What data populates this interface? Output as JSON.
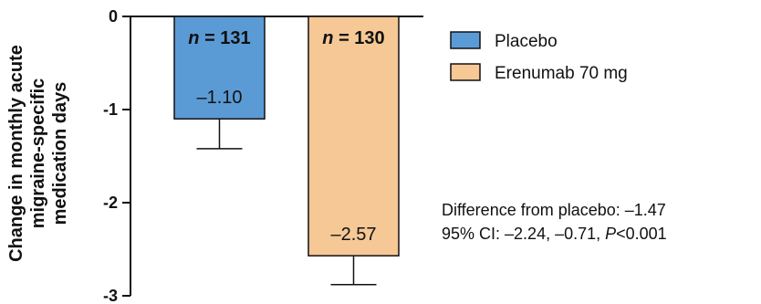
{
  "colors": {
    "placebo_fill": "#5b9bd5",
    "erenumab_fill": "#f5c896",
    "bar_stroke": "#111111",
    "axis": "#111111"
  },
  "chart_data": {
    "type": "bar",
    "categories": [
      "Placebo",
      "Erenumab 70 mg"
    ],
    "values": [
      -1.1,
      -2.57
    ],
    "error_lower": [
      -1.42,
      -2.88
    ],
    "n_prefix": "n",
    "n_values": [
      "131",
      "130"
    ],
    "n_labels": [
      " = 131",
      " = 130"
    ],
    "value_labels": [
      "–1.10",
      "–2.57"
    ],
    "ylabel_lines": [
      "Change in monthly acute",
      "migraine-specific",
      "medication days"
    ],
    "ylim": [
      -3,
      0
    ],
    "yticks": [
      0,
      -1,
      -2,
      -3
    ],
    "ytick_labels": [
      "0",
      "-1",
      "-2",
      "-3"
    ],
    "legend": {
      "placement": "top-right",
      "entries": [
        "Placebo",
        "Erenumab 70 mg"
      ]
    },
    "annotation": {
      "line1": "Difference from placebo: –1.47",
      "line2_prefix": "95% CI: –2.24, –0.71, ",
      "line2_p": "P",
      "line2_suffix": "<0.001"
    },
    "grid": false
  }
}
